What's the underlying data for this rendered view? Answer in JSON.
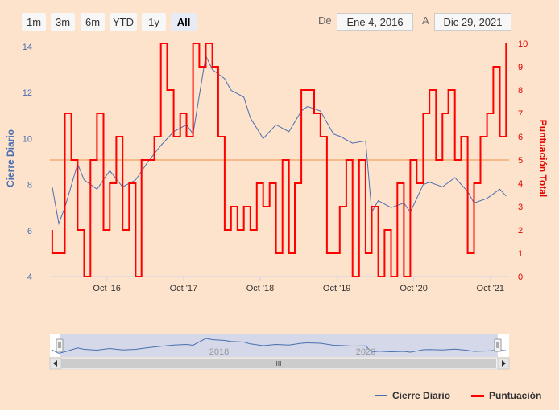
{
  "range_selector": {
    "buttons": [
      "1m",
      "3m",
      "6m",
      "YTD",
      "1y",
      "All"
    ],
    "active": "All",
    "from_label": "De",
    "from_value": "Ene 4, 2016",
    "to_label": "A",
    "to_value": "Dic 29, 2021"
  },
  "colors": {
    "background": "#fde3cc",
    "price_line": "#4a6fb0",
    "score_line": "#ff0000",
    "plot_line": "#f5b98a",
    "left_axis_text": "#4a6fb0",
    "right_axis_text": "#e00000"
  },
  "chart_data": {
    "type": "line",
    "title": "",
    "x_range": [
      "2016-01-04",
      "2021-12-29"
    ],
    "x_ticks": [
      "Oct '16",
      "Oct '17",
      "Oct '18",
      "Oct '19",
      "Oct '20",
      "Oct '21"
    ],
    "y_left": {
      "label": "Cierre Diario",
      "ticks": [
        4,
        6,
        8,
        10,
        12,
        14
      ],
      "range": [
        4,
        14
      ]
    },
    "y_right": {
      "label": "Puntuación Total",
      "ticks": [
        0,
        1,
        2,
        3,
        4,
        5,
        6,
        7,
        8,
        9,
        10
      ],
      "range": [
        0,
        10
      ]
    },
    "plot_line_y_right": 5,
    "legend_placement": "bottom-right",
    "series": [
      {
        "name": "Cierre Diario",
        "axis": "left",
        "x": [
          "2016-01",
          "2016-02",
          "2016-03",
          "2016-05",
          "2016-06",
          "2016-08",
          "2016-10",
          "2016-12",
          "2017-02",
          "2017-04",
          "2017-06",
          "2017-08",
          "2017-10",
          "2017-11",
          "2018-01",
          "2018-02",
          "2018-04",
          "2018-05",
          "2018-07",
          "2018-08",
          "2018-10",
          "2018-12",
          "2019-02",
          "2019-04",
          "2019-05",
          "2019-07",
          "2019-09",
          "2019-10",
          "2019-12",
          "2020-02",
          "2020-03",
          "2020-04",
          "2020-06",
          "2020-08",
          "2020-09",
          "2020-11",
          "2020-12",
          "2021-02",
          "2021-04",
          "2021-06",
          "2021-07",
          "2021-09",
          "2021-11",
          "2021-12"
        ],
        "y": [
          7.9,
          6.3,
          7.0,
          8.9,
          8.2,
          7.8,
          8.6,
          7.9,
          8.2,
          9.0,
          9.7,
          10.3,
          10.6,
          10.2,
          13.6,
          13.0,
          12.6,
          12.1,
          11.8,
          10.9,
          10.0,
          10.6,
          10.3,
          11.2,
          11.4,
          11.2,
          10.2,
          10.1,
          9.8,
          9.9,
          6.8,
          7.3,
          7.0,
          7.2,
          6.8,
          8.0,
          8.1,
          7.9,
          8.3,
          7.7,
          7.2,
          7.4,
          7.8,
          7.5
        ]
      },
      {
        "name": "Puntuación",
        "axis": "right",
        "x": [
          "2016-01",
          "2016-01",
          "2016-02",
          "2016-03",
          "2016-03",
          "2016-04",
          "2016-05",
          "2016-06",
          "2016-07",
          "2016-08",
          "2016-09",
          "2016-10",
          "2016-11",
          "2016-12",
          "2017-01",
          "2017-02",
          "2017-03",
          "2017-04",
          "2017-05",
          "2017-06",
          "2017-07",
          "2017-08",
          "2017-09",
          "2017-10",
          "2017-11",
          "2017-12",
          "2018-01",
          "2018-02",
          "2018-03",
          "2018-04",
          "2018-05",
          "2018-06",
          "2018-07",
          "2018-08",
          "2018-09",
          "2018-10",
          "2018-11",
          "2018-12",
          "2019-01",
          "2019-02",
          "2019-03",
          "2019-04",
          "2019-05",
          "2019-06",
          "2019-07",
          "2019-08",
          "2019-09",
          "2019-10",
          "2019-11",
          "2019-12",
          "2020-01",
          "2020-02",
          "2020-03",
          "2020-04",
          "2020-05",
          "2020-06",
          "2020-07",
          "2020-08",
          "2020-09",
          "2020-10",
          "2020-11",
          "2020-12",
          "2021-01",
          "2021-02",
          "2021-03",
          "2021-04",
          "2021-05",
          "2021-06",
          "2021-07",
          "2021-08",
          "2021-09",
          "2021-10",
          "2021-11",
          "2021-12"
        ],
        "y": [
          2,
          1,
          1,
          4,
          7,
          5,
          2,
          0,
          5,
          7,
          2,
          4,
          6,
          2,
          4,
          0,
          5,
          5,
          6,
          10,
          8,
          6,
          7,
          6,
          10,
          9,
          10,
          9,
          6,
          2,
          3,
          2,
          3,
          2,
          4,
          3,
          4,
          1,
          5,
          1,
          4,
          8,
          8,
          7,
          6,
          1,
          1,
          3,
          5,
          0,
          5,
          1,
          3,
          0,
          2,
          0,
          4,
          0,
          5,
          4,
          7,
          8,
          5,
          7,
          8,
          5,
          6,
          1,
          4,
          6,
          7,
          9,
          6,
          10
        ]
      }
    ]
  },
  "navigator": {
    "year_labels": [
      "2018",
      "2020"
    ],
    "scroll_glyph": "III"
  },
  "legend": {
    "items": [
      "Cierre Diario",
      "Puntuación"
    ]
  }
}
